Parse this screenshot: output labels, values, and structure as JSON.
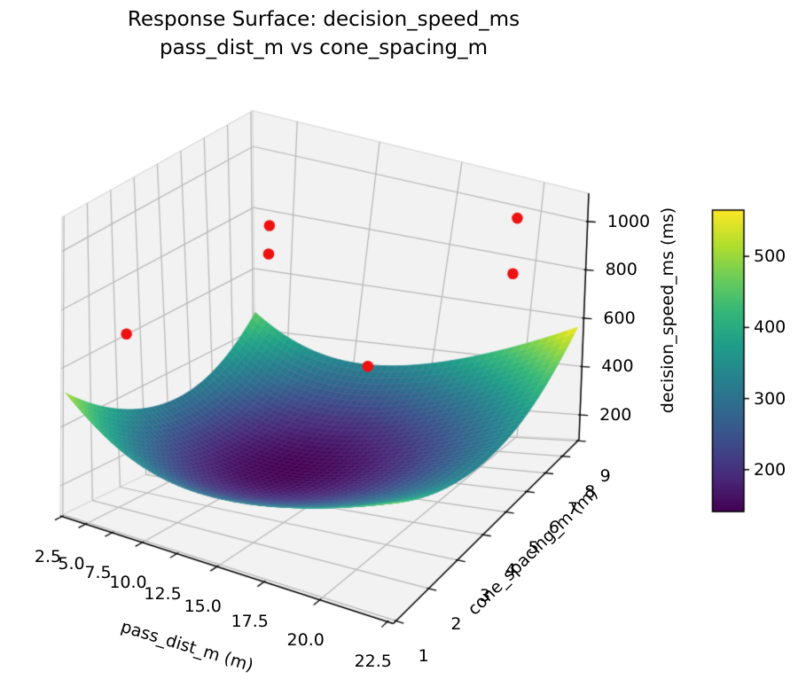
{
  "chart_data": {
    "type": "surface3d",
    "title_line1": "Response Surface: decision_speed_ms",
    "title_line2": "pass_dist_m vs cone_spacing_m",
    "xlabel": "pass_dist_m (m)",
    "ylabel": "cone_spacing_m (m)",
    "zlabel": "decision_speed_ms (ms)",
    "x_tick_values": [
      2.5,
      5.0,
      7.5,
      10.0,
      12.5,
      15.0,
      17.5,
      20.0,
      22.5
    ],
    "x_tick_labels": [
      "2.5",
      "5.0",
      "7.5",
      "10.0",
      "12.5",
      "15.0",
      "17.5",
      "20.0",
      "22.5"
    ],
    "y_tick_values": [
      1,
      2,
      3,
      4,
      5,
      6,
      7,
      8,
      9
    ],
    "y_tick_labels": [
      "1",
      "2",
      "3",
      "4",
      "5",
      "6",
      "7",
      "8",
      "9"
    ],
    "z_tick_values": [
      200,
      400,
      600,
      800,
      1000
    ],
    "z_tick_labels": [
      "200",
      "400",
      "600",
      "800",
      "1000"
    ],
    "x_grid": [
      5,
      10,
      15,
      20
    ],
    "y_grid": [
      1,
      2,
      3,
      4,
      5,
      6,
      7,
      8,
      9
    ],
    "z_grid": [
      200,
      400,
      600,
      800,
      1000
    ],
    "xlim": [
      2.3,
      22.7
    ],
    "ylim": [
      0.92,
      9.08
    ],
    "zlim": [
      97,
      1117
    ],
    "view": {
      "elev": 30,
      "azim": -60,
      "proj_type": "persp"
    },
    "surface": {
      "x_min": 2.5,
      "x_max": 22.5,
      "y_min": 1,
      "y_max": 9,
      "model": "z = c0 + cuu*u^2 + cvv*v^2 + cuv*u*v + cu*u + cv*v; u=(x-12.5)/10, v=(y-5)/4",
      "c0": 141.5,
      "cuu": 179.9,
      "cvv": 179.9,
      "cuv": 38.75,
      "cu": 13.75,
      "cv": 11.25,
      "colormap": "viridis"
    },
    "scatter": {
      "color": "#ee1111",
      "points": [
        [
          5,
          2,
          700
        ],
        [
          5,
          8,
          810
        ],
        [
          5,
          8,
          713
        ],
        [
          20,
          8,
          1030
        ],
        [
          20,
          8,
          808
        ],
        [
          16,
          5,
          563
        ],
        [
          16,
          5,
          362
        ]
      ],
      "behind_surface_index": 6
    },
    "colorbar": {
      "tick_values": [
        200,
        300,
        400,
        500
      ],
      "tick_labels": [
        "200",
        "300",
        "400",
        "500"
      ]
    }
  },
  "colors": {
    "background": "#ffffff",
    "pane": "#f2f2f2",
    "pane_edge": "#d8d8d8",
    "grid": "#b8b8b8",
    "axis_line": "#000000",
    "text": "#000000",
    "surface_mesh": "rgba(255,255,255,0.14)"
  }
}
